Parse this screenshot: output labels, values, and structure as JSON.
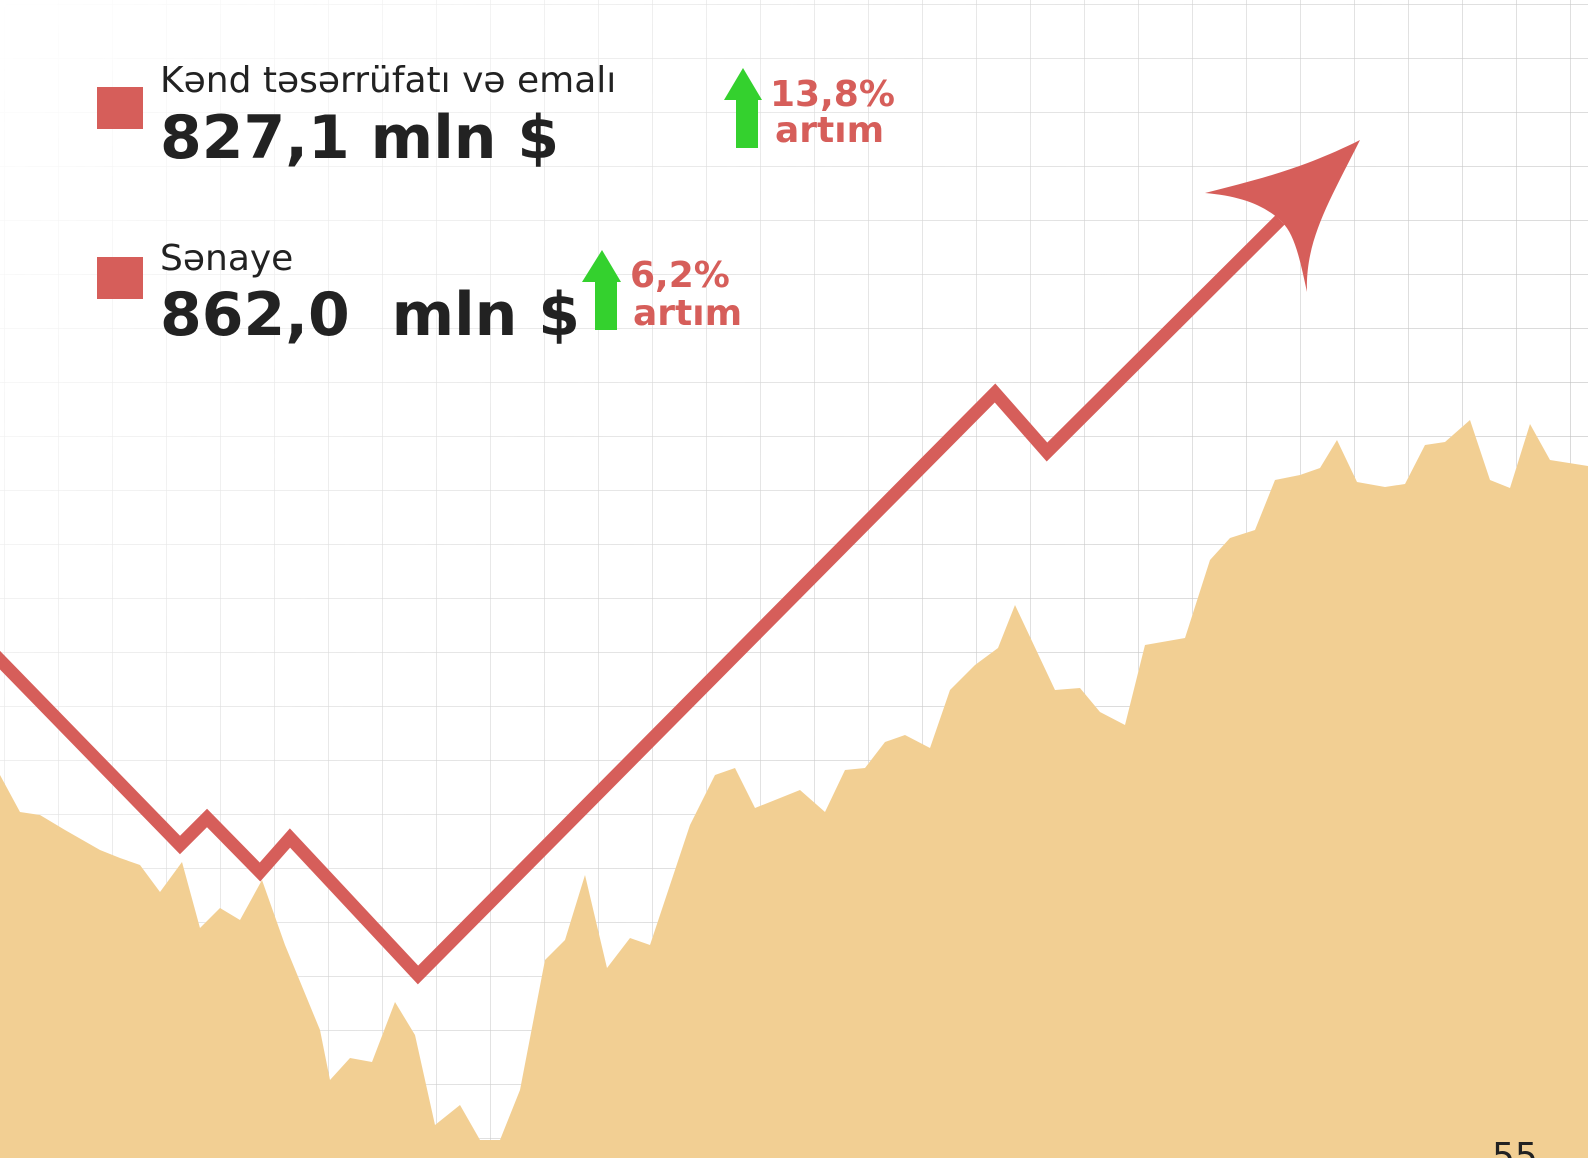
{
  "items": [
    {
      "label": "Kənd təsərrüfatı və emalı",
      "value": "827,1 mln $",
      "change": "13,8%",
      "change_label": "artım"
    },
    {
      "label": "Sənaye",
      "value": "862,0  mln $",
      "change": "6,2%",
      "change_label": "artım"
    }
  ],
  "page_number": "55"
}
